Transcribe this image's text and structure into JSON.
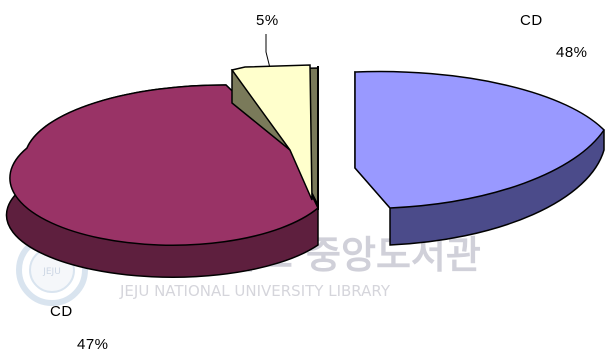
{
  "chart_data": {
    "type": "pie",
    "style": "3d-exploded",
    "slices": [
      {
        "label": "CD",
        "value": 48,
        "value_label": "48%",
        "color": "#9999ff",
        "side_color": "#4b4b8a"
      },
      {
        "label": "",
        "value": 5,
        "value_label": "5%",
        "color": "#ffffcc",
        "side_color": "#7a7a5a"
      },
      {
        "label": "CD",
        "value": 47,
        "value_label": "47%",
        "color": "#993366",
        "side_color": "#5e1f3e"
      }
    ]
  },
  "watermark": {
    "korean_name": "제주대학교 중앙도서관",
    "english_name": "JEJU NATIONAL UNIVERSITY LIBRARY",
    "seal_text": "JEJU"
  }
}
